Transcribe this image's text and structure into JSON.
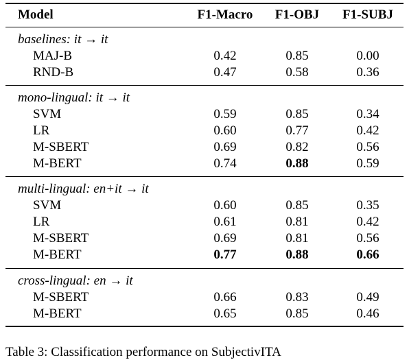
{
  "table": {
    "headers": [
      "Model",
      "F1-Macro",
      "F1-OBJ",
      "F1-SUBJ"
    ],
    "groups": [
      {
        "title": "baselines: it → it",
        "rows": [
          {
            "model": "MAJ-B",
            "macro": "0.42",
            "obj": "0.85",
            "subj": "0.00"
          },
          {
            "model": "RND-B",
            "macro": "0.47",
            "obj": "0.58",
            "subj": "0.36"
          }
        ]
      },
      {
        "title": "mono-lingual: it → it",
        "rows": [
          {
            "model": "SVM",
            "macro": "0.59",
            "obj": "0.85",
            "subj": "0.34"
          },
          {
            "model": "LR",
            "macro": "0.60",
            "obj": "0.77",
            "subj": "0.42"
          },
          {
            "model": "M-SBERT",
            "macro": "0.69",
            "obj": "0.82",
            "subj": "0.56"
          },
          {
            "model": "M-BERT",
            "macro": "0.74",
            "obj": "0.88",
            "subj": "0.59"
          }
        ]
      },
      {
        "title": "multi-lingual: en+it → it",
        "rows": [
          {
            "model": "SVM",
            "macro": "0.60",
            "obj": "0.85",
            "subj": "0.35"
          },
          {
            "model": "LR",
            "macro": "0.61",
            "obj": "0.81",
            "subj": "0.42"
          },
          {
            "model": "M-SBERT",
            "macro": "0.69",
            "obj": "0.81",
            "subj": "0.56"
          },
          {
            "model": "M-BERT",
            "macro": "0.77",
            "obj": "0.88",
            "subj": "0.66"
          }
        ]
      },
      {
        "title": "cross-lingual: en → it",
        "rows": [
          {
            "model": "M-SBERT",
            "macro": "0.66",
            "obj": "0.83",
            "subj": "0.49"
          },
          {
            "model": "M-BERT",
            "macro": "0.65",
            "obj": "0.85",
            "subj": "0.46"
          }
        ]
      }
    ]
  },
  "caption": "Table 3: Classification performance on SubjectivITA"
}
